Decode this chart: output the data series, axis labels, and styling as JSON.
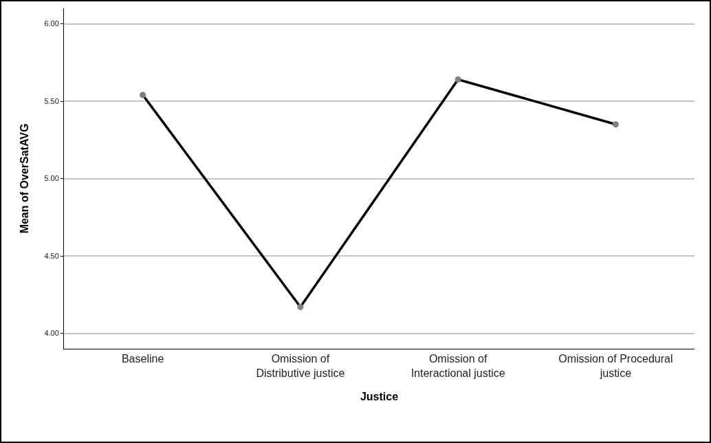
{
  "chart_data": {
    "type": "line",
    "xlabel": "Justice",
    "ylabel": "Mean of OverSatAVG",
    "categories": [
      "Baseline",
      "Omission of Distributive justice",
      "Omission of Interactional justice",
      "Omission of Procedural justice"
    ],
    "series": [
      {
        "color": "#000000",
        "colors": [
          "#808080",
          "#808080",
          "#808080",
          "#808080"
        ],
        "values": [
          5.54,
          4.17,
          5.64,
          5.35
        ]
      }
    ],
    "ylim": [
      3.9,
      6.1
    ],
    "yticks": [
      {
        "value": 4,
        "label": "4.00"
      },
      {
        "value": 4.5,
        "label": "4.50"
      },
      {
        "value": 5,
        "label": "5.00"
      },
      {
        "value": 5.5,
        "label": "5.50"
      },
      {
        "value": 6,
        "label": "6.00"
      }
    ],
    "grid": "y",
    "marker": "circle",
    "line_style": "solid"
  }
}
